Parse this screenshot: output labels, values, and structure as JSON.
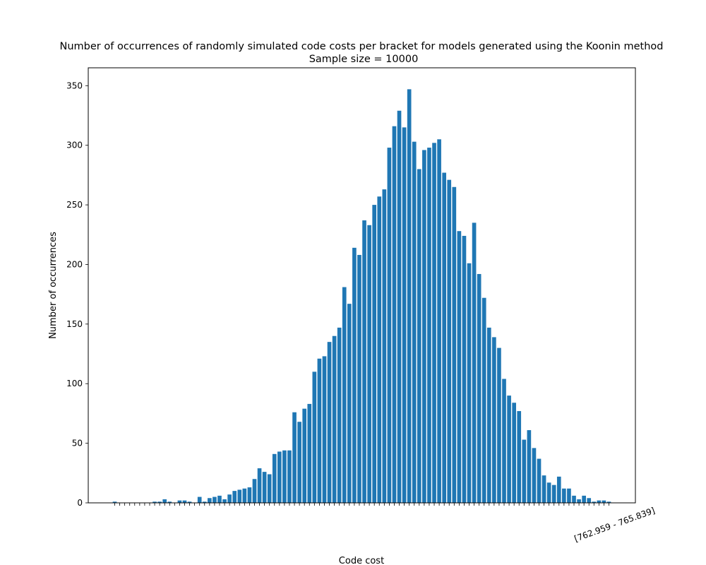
{
  "chart_data": {
    "type": "bar",
    "title": "Number of occurrences of randomly simulated code costs per bracket for models generated using the Koonin method",
    "subtitle": "Sample size = 10000",
    "xlabel": "Code cost",
    "ylabel": "Number of occurrences",
    "ylim": [
      0,
      365
    ],
    "yticks": [
      0,
      50,
      100,
      150,
      200,
      250,
      300,
      350
    ],
    "grid": false,
    "last_category_label": "[762.959 - 765.839]",
    "values": [
      1,
      0,
      0,
      0,
      0,
      0,
      0,
      0,
      1,
      1,
      3,
      1,
      0,
      2,
      2,
      1,
      0,
      5,
      1,
      4,
      5,
      6,
      3,
      7,
      10,
      11,
      12,
      13,
      20,
      29,
      26,
      24,
      41,
      43,
      44,
      44,
      76,
      68,
      79,
      83,
      110,
      121,
      123,
      135,
      140,
      147,
      181,
      167,
      214,
      208,
      237,
      233,
      250,
      257,
      263,
      298,
      316,
      329,
      315,
      347,
      303,
      280,
      296,
      298,
      302,
      305,
      277,
      271,
      265,
      228,
      224,
      201,
      235,
      192,
      172,
      147,
      139,
      130,
      104,
      90,
      84,
      77,
      53,
      61,
      46,
      37,
      23,
      17,
      15,
      22,
      12,
      12,
      6,
      3,
      6,
      4,
      1,
      2,
      2,
      1
    ]
  }
}
